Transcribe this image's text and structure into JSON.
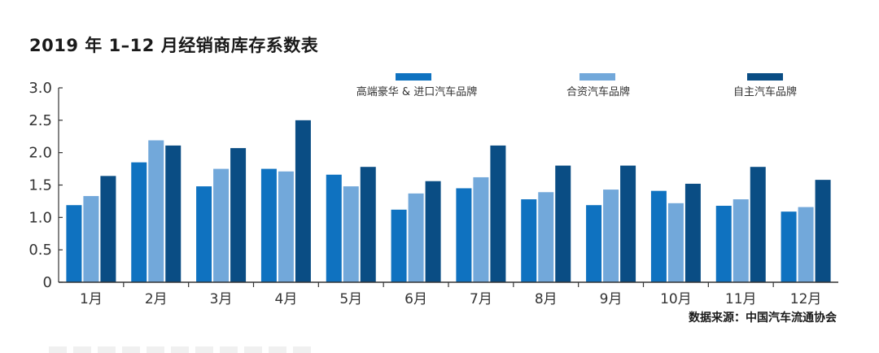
{
  "page": {
    "title": "2019 年 1–12 月经销商库存系数表",
    "source": "数据来源：中国汽车流通协会"
  },
  "chart_data": {
    "type": "bar",
    "title": "2019 年 1–12 月经销商库存系数表",
    "xlabel": "",
    "ylabel": "",
    "ylim": [
      0,
      3.0
    ],
    "yticks": [
      "0",
      "0.5",
      "1.0",
      "1.5",
      "2.0",
      "2.5",
      "3.0"
    ],
    "ytick_values": [
      0,
      0.5,
      1.0,
      1.5,
      2.0,
      2.5,
      3.0
    ],
    "grid": false,
    "legend_placement": "top",
    "categories": [
      "1月",
      "2月",
      "3月",
      "4月",
      "5月",
      "6月",
      "7月",
      "8月",
      "9月",
      "10月",
      "11月",
      "12月"
    ],
    "series": [
      {
        "name": "高端豪华 & 进口汽车品牌",
        "color": "#0f72c0",
        "values": [
          1.19,
          1.85,
          1.48,
          1.75,
          1.66,
          1.12,
          1.45,
          1.28,
          1.19,
          1.41,
          1.18,
          1.09
        ]
      },
      {
        "name": "合资汽车品牌",
        "color": "#72a8da",
        "values": [
          1.33,
          2.19,
          1.75,
          1.71,
          1.48,
          1.37,
          1.62,
          1.39,
          1.43,
          1.22,
          1.28,
          1.16
        ]
      },
      {
        "name": "自主汽车品牌",
        "color": "#0a4d84",
        "values": [
          1.64,
          2.11,
          2.07,
          2.5,
          1.78,
          1.56,
          2.11,
          1.8,
          1.8,
          1.52,
          1.78,
          1.58
        ]
      }
    ]
  }
}
